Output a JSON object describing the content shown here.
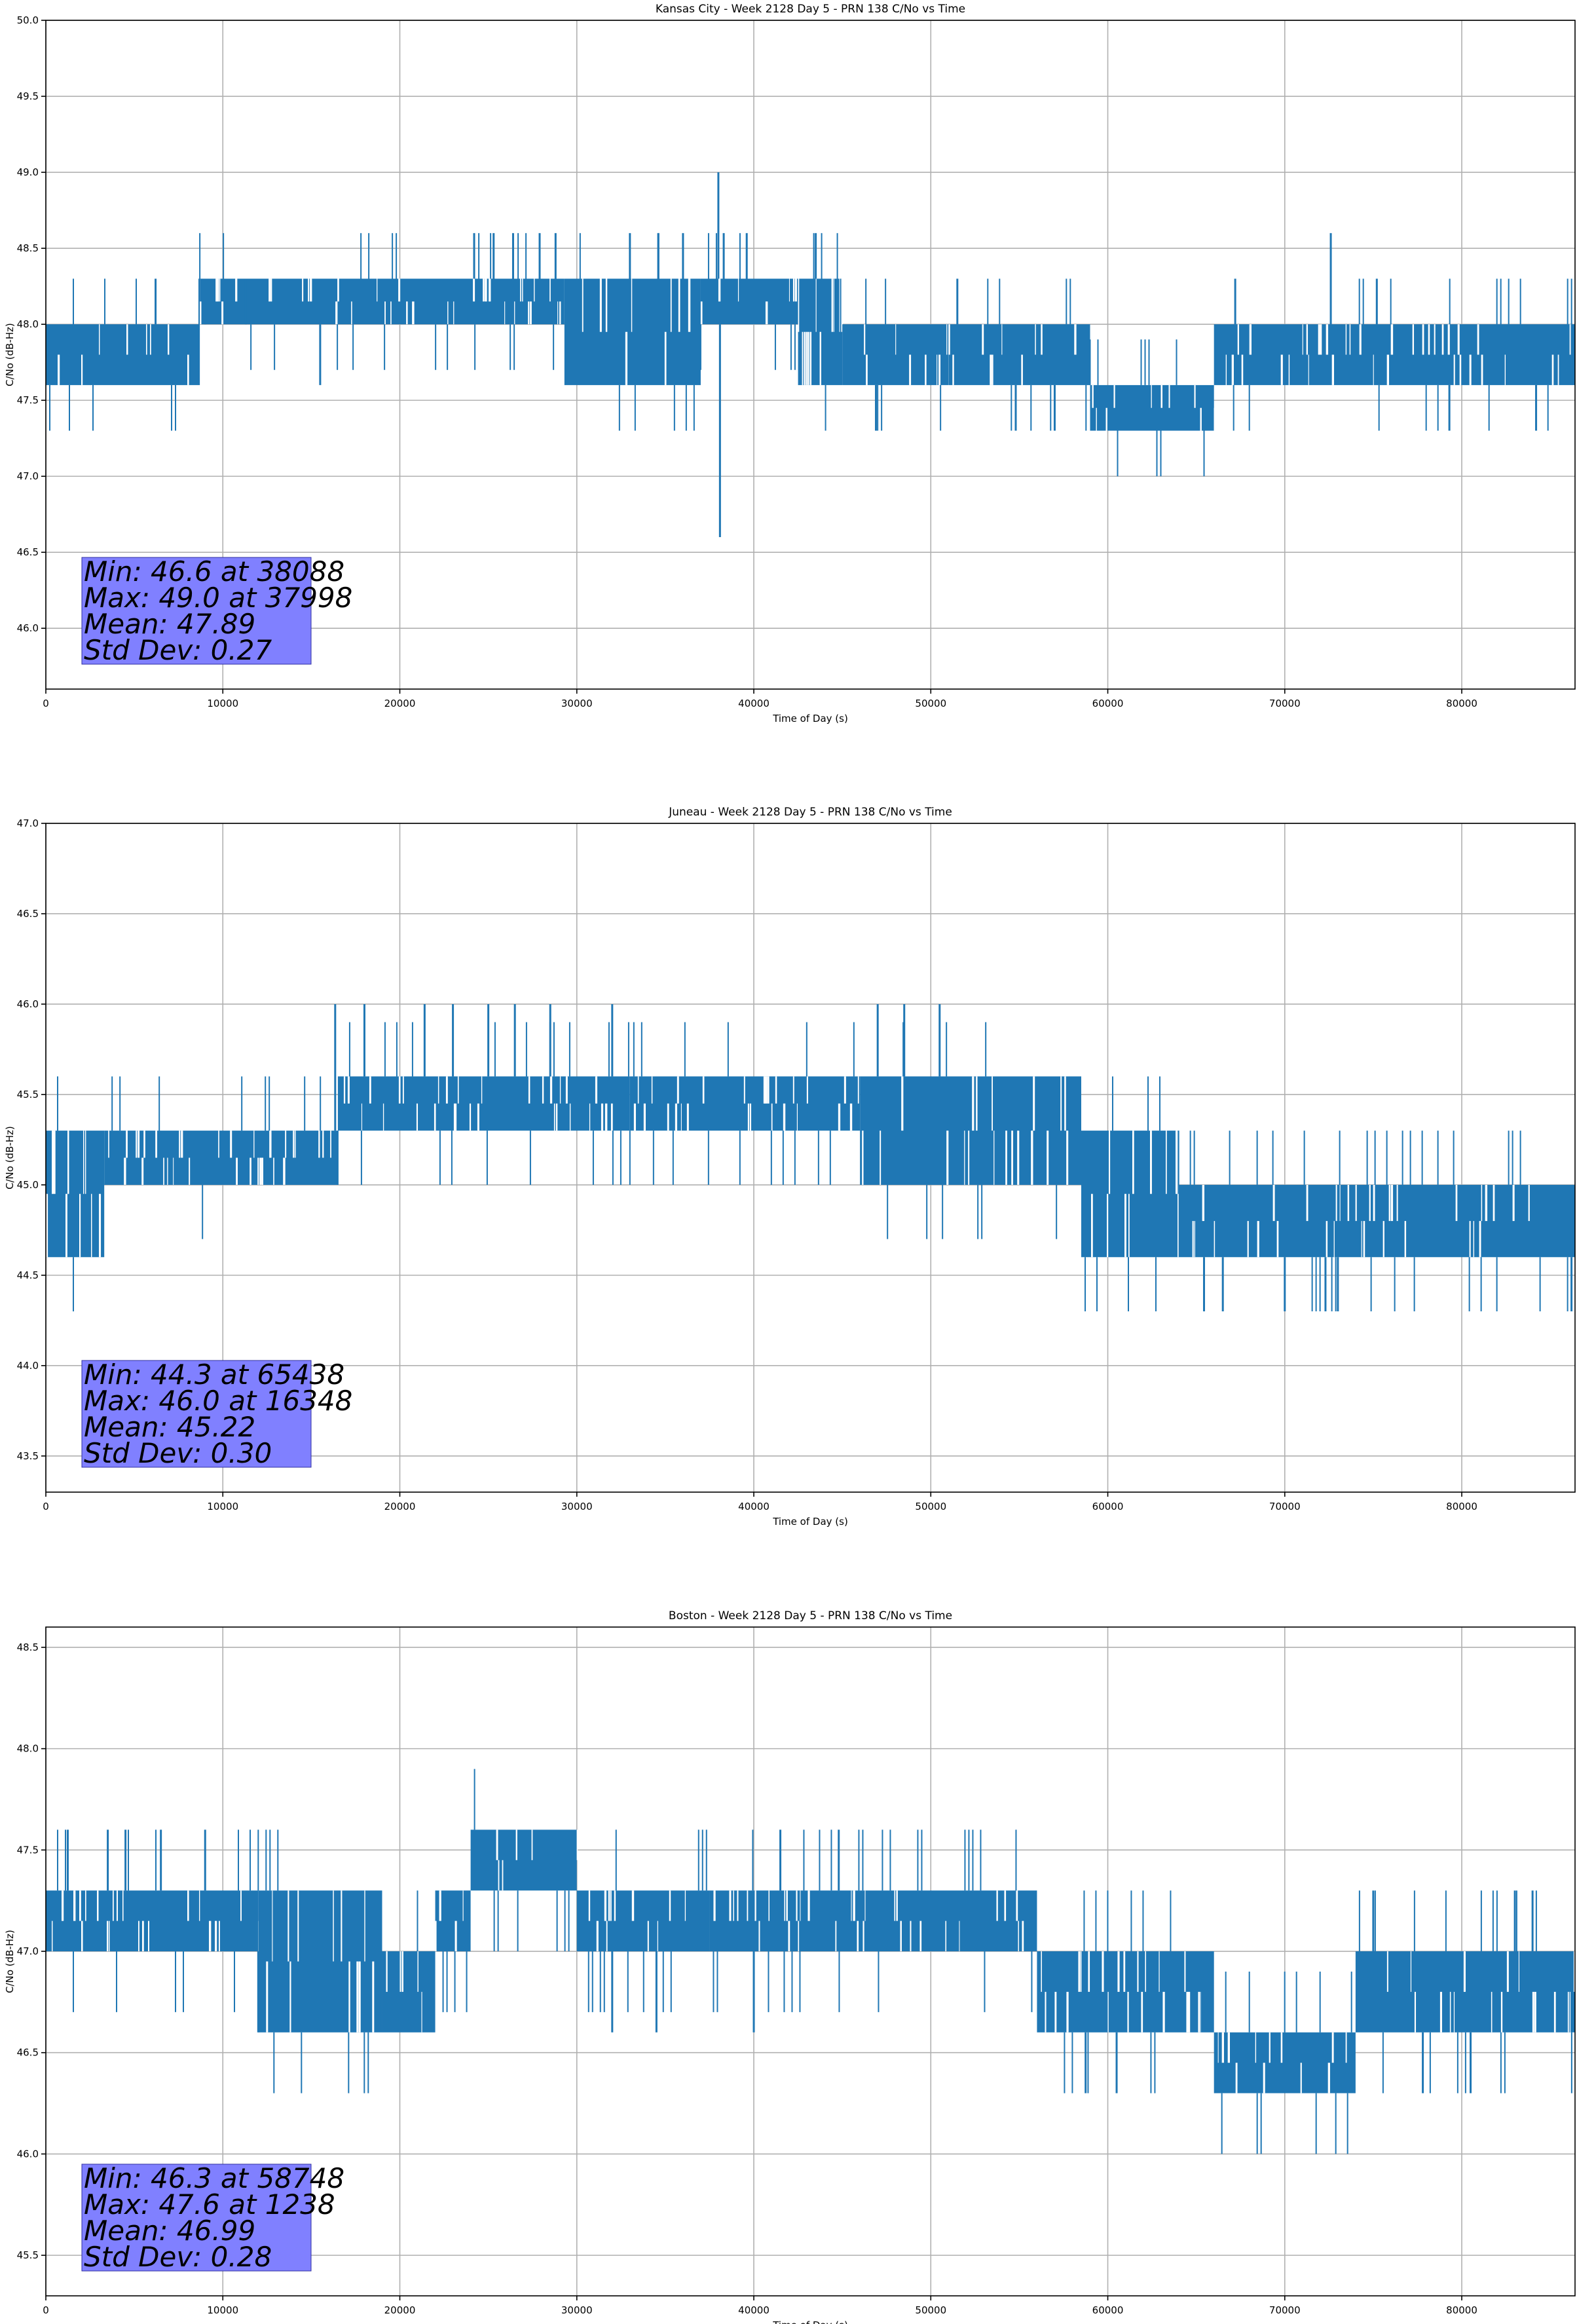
{
  "chart_data": [
    {
      "type": "line",
      "title": "Kansas City - Week 2128 Day 5 - PRN 138 C/No vs Time",
      "xlabel": "Time of Day (s)",
      "ylabel": "C/No (dB-Hz)",
      "xlim": [
        0,
        86400
      ],
      "ylim": [
        45.6,
        50.0
      ],
      "xticks": [
        0,
        10000,
        20000,
        30000,
        40000,
        50000,
        60000,
        70000,
        80000
      ],
      "yticks": [
        46.0,
        46.5,
        47.0,
        47.5,
        48.0,
        48.5,
        49.0,
        49.5,
        50.0
      ],
      "ytick_labels": [
        "46.0",
        "46.5",
        "47.0",
        "47.5",
        "48.0",
        "48.5",
        "49.0",
        "49.5",
        "50.0"
      ],
      "grid": true,
      "color": "#1f77b4",
      "series": [
        {
          "segments": [
            {
              "x0": 0,
              "x1": 8700,
              "lo": 47.6,
              "hi": 48.0
            },
            {
              "x0": 8700,
              "x1": 29300,
              "lo": 48.0,
              "hi": 48.3
            },
            {
              "x0": 29300,
              "x1": 37000,
              "lo": 47.6,
              "hi": 48.3
            },
            {
              "x0": 37000,
              "x1": 42500,
              "lo": 48.0,
              "hi": 48.3
            },
            {
              "x0": 42500,
              "x1": 45000,
              "lo": 47.6,
              "hi": 48.3
            },
            {
              "x0": 45000,
              "x1": 51000,
              "lo": 47.6,
              "hi": 48.0
            },
            {
              "x0": 51000,
              "x1": 59000,
              "lo": 47.6,
              "hi": 48.0
            },
            {
              "x0": 59000,
              "x1": 66000,
              "lo": 47.3,
              "hi": 47.6
            },
            {
              "x0": 66000,
              "x1": 86400,
              "lo": 47.6,
              "hi": 48.0
            }
          ],
          "spikes": [
            [
              6200,
              48.3
            ],
            [
              9000,
              48.3
            ],
            [
              11300,
              48.3
            ],
            [
              15500,
              47.6
            ],
            [
              24200,
              48.6
            ],
            [
              25300,
              48.6
            ],
            [
              26400,
              48.6
            ],
            [
              27900,
              48.6
            ],
            [
              28800,
              48.6
            ],
            [
              33000,
              48.6
            ],
            [
              34600,
              48.6
            ],
            [
              36000,
              48.6
            ],
            [
              37998,
              49.0
            ],
            [
              38088,
              46.6
            ],
            [
              38300,
              48.6
            ],
            [
              39600,
              48.6
            ],
            [
              43500,
              48.6
            ],
            [
              46900,
              47.3
            ],
            [
              51500,
              48.3
            ],
            [
              54800,
              47.3
            ],
            [
              57000,
              47.3
            ],
            [
              59500,
              47.3
            ],
            [
              67200,
              48.3
            ],
            [
              72600,
              48.6
            ],
            [
              75200,
              48.3
            ],
            [
              79300,
              47.3
            ],
            [
              84200,
              47.3
            ]
          ]
        }
      ],
      "annotation": [
        "Min: 46.6 at 38088",
        "Max: 49.0 at 37998",
        "Mean: 47.89",
        "Std Dev: 0.27"
      ],
      "annotation_color": "#8080ff"
    },
    {
      "type": "line",
      "title": "Juneau - Week 2128 Day 5 - PRN 138 C/No vs Time",
      "xlabel": "Time of Day (s)",
      "ylabel": "C/No (dB-Hz)",
      "xlim": [
        0,
        86400
      ],
      "ylim": [
        43.3,
        47.0
      ],
      "xticks": [
        0,
        10000,
        20000,
        30000,
        40000,
        50000,
        60000,
        70000,
        80000
      ],
      "yticks": [
        43.5,
        44.0,
        44.5,
        45.0,
        45.5,
        46.0,
        46.5,
        47.0
      ],
      "ytick_labels": [
        "43.5",
        "44.0",
        "44.5",
        "45.0",
        "45.5",
        "46.0",
        "46.5",
        "47.0"
      ],
      "grid": true,
      "color": "#1f77b4",
      "series": [
        {
          "segments": [
            {
              "x0": 0,
              "x1": 3300,
              "lo": 44.6,
              "hi": 45.3
            },
            {
              "x0": 3300,
              "x1": 16500,
              "lo": 45.0,
              "hi": 45.3
            },
            {
              "x0": 16500,
              "x1": 33000,
              "lo": 45.3,
              "hi": 45.6
            },
            {
              "x0": 33000,
              "x1": 46000,
              "lo": 45.3,
              "hi": 45.6
            },
            {
              "x0": 46000,
              "x1": 58500,
              "lo": 45.0,
              "hi": 45.6
            },
            {
              "x0": 58500,
              "x1": 64000,
              "lo": 44.6,
              "hi": 45.3
            },
            {
              "x0": 64000,
              "x1": 86400,
              "lo": 44.6,
              "hi": 45.0
            }
          ],
          "spikes": [
            [
              16348,
              46.0
            ],
            [
              18000,
              46.0
            ],
            [
              21400,
              46.0
            ],
            [
              23000,
              46.0
            ],
            [
              25000,
              46.0
            ],
            [
              26500,
              46.0
            ],
            [
              28500,
              46.0
            ],
            [
              32000,
              46.0
            ],
            [
              47000,
              46.0
            ],
            [
              48500,
              46.0
            ],
            [
              50500,
              46.0
            ],
            [
              65438,
              44.3
            ],
            [
              66500,
              44.3
            ],
            [
              70000,
              44.3
            ],
            [
              72300,
              44.3
            ],
            [
              73000,
              44.3
            ],
            [
              86200,
              44.3
            ]
          ]
        }
      ],
      "annotation": [
        "Min: 44.3 at 65438",
        "Max: 46.0 at 16348",
        "Mean: 45.22",
        "Std Dev: 0.30"
      ],
      "annotation_color": "#8080ff"
    },
    {
      "type": "line",
      "title": "Boston - Week 2128 Day 5 - PRN 138 C/No vs Time",
      "xlabel": "Time of Day (s)",
      "ylabel": "C/No (dB-Hz)",
      "xlim": [
        0,
        86400
      ],
      "ylim": [
        45.3,
        48.6
      ],
      "xticks": [
        0,
        10000,
        20000,
        30000,
        40000,
        50000,
        60000,
        70000,
        80000
      ],
      "yticks": [
        45.5,
        46.0,
        46.5,
        47.0,
        47.5,
        48.0,
        48.5
      ],
      "ytick_labels": [
        "45.5",
        "46.0",
        "46.5",
        "47.0",
        "47.5",
        "48.0",
        "48.5"
      ],
      "grid": true,
      "color": "#1f77b4",
      "series": [
        {
          "segments": [
            {
              "x0": 0,
              "x1": 12000,
              "lo": 47.0,
              "hi": 47.3
            },
            {
              "x0": 12000,
              "x1": 19000,
              "lo": 46.6,
              "hi": 47.3
            },
            {
              "x0": 19000,
              "x1": 22000,
              "lo": 46.6,
              "hi": 47.0
            },
            {
              "x0": 22000,
              "x1": 24000,
              "lo": 47.0,
              "hi": 47.3
            },
            {
              "x0": 24000,
              "x1": 30000,
              "lo": 47.3,
              "hi": 47.6
            },
            {
              "x0": 30000,
              "x1": 37500,
              "lo": 47.0,
              "hi": 47.3
            },
            {
              "x0": 37500,
              "x1": 56000,
              "lo": 47.0,
              "hi": 47.3
            },
            {
              "x0": 56000,
              "x1": 66000,
              "lo": 46.6,
              "hi": 47.0
            },
            {
              "x0": 66000,
              "x1": 74000,
              "lo": 46.3,
              "hi": 46.6
            },
            {
              "x0": 74000,
              "x1": 86400,
              "lo": 46.6,
              "hi": 47.0
            }
          ],
          "spikes": [
            [
              1238,
              47.6
            ],
            [
              3500,
              47.6
            ],
            [
              4500,
              47.6
            ],
            [
              6500,
              47.6
            ],
            [
              9000,
              47.6
            ],
            [
              12000,
              46.6
            ],
            [
              14500,
              46.6
            ],
            [
              32000,
              46.6
            ],
            [
              34500,
              46.6
            ],
            [
              40000,
              46.6
            ],
            [
              41500,
              47.6
            ],
            [
              44800,
              47.6
            ],
            [
              58748,
              46.3
            ],
            [
              60500,
              46.3
            ],
            [
              71000,
              46.3
            ],
            [
              74000,
              46.3
            ],
            [
              75000,
              47.3
            ],
            [
              77800,
              46.3
            ],
            [
              80500,
              46.3
            ],
            [
              83000,
              47.3
            ],
            [
              84000,
              47.3
            ]
          ]
        }
      ],
      "annotation": [
        "Min: 46.3 at 58748",
        "Max: 47.6 at 1238",
        "Mean: 46.99",
        "Std Dev: 0.28"
      ],
      "annotation_color": "#8080ff"
    }
  ]
}
